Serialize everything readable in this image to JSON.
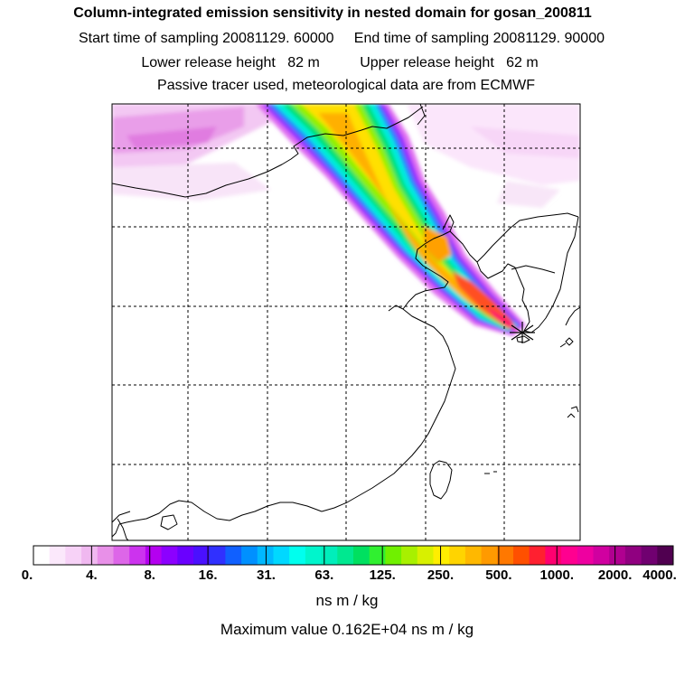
{
  "titles": {
    "line1": "Column-integrated emission sensitivity in nested domain for gosan_200811",
    "line2": "Start time of sampling 20081129. 60000     End time of sampling 20081129. 90000",
    "line3": "Lower release height   82 m          Upper release height   62 m",
    "line4": "Passive tracer used, meteorological data are from ECMWF"
  },
  "colorbar": {
    "tick_labels": [
      "0.",
      "4.",
      "8.",
      "16.",
      "31.",
      "63.",
      "125.",
      "250.",
      "500.",
      "1000.",
      "2000.",
      "4000."
    ],
    "colors": [
      "#ffffff",
      "#fbe8fb",
      "#f7d2f7",
      "#f0b8f0",
      "#e890e8",
      "#dd66e8",
      "#cc33ee",
      "#b400f0",
      "#8c00ff",
      "#6a00ff",
      "#4a10ff",
      "#3030ff",
      "#1060ff",
      "#0090ff",
      "#00b8ff",
      "#00d8ff",
      "#00ffee",
      "#00f5cc",
      "#00eebb",
      "#00e890",
      "#00e060",
      "#30f030",
      "#70f000",
      "#a8f000",
      "#d8f000",
      "#ffee00",
      "#ffd400",
      "#ffb800",
      "#ff9a00",
      "#ff7800",
      "#ff5000",
      "#ff2030",
      "#ff0070",
      "#ff0090",
      "#ee00a0",
      "#d000a0",
      "#b00090",
      "#900080",
      "#700070",
      "#500050"
    ],
    "units": "ns m / kg",
    "max_value": "Maximum value  0.162E+04 ns m / kg"
  },
  "chart_data": {
    "type": "heatmap",
    "title": "Column-integrated emission sensitivity in nested domain for gosan_200811",
    "colorbar_levels": [
      0,
      4,
      8,
      16,
      31,
      63,
      125,
      250,
      500,
      1000,
      2000,
      4000
    ],
    "units": "ns m / kg",
    "max_value": 1620,
    "release_site": "gosan",
    "plume_direction": "from northwest toward release site",
    "grid": true
  }
}
